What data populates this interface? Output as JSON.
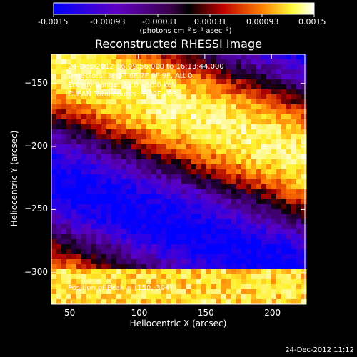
{
  "colorbar": {
    "ticks": [
      "-0.0015",
      "-0.00093",
      "-0.00031",
      "0.00031",
      "0.00093",
      "0.0015"
    ],
    "unit_text": "(photons cm⁻² s⁻¹ asec⁻²)"
  },
  "title": "Reconstructed RHESSI Image",
  "annotations": {
    "time": "24-Dec-2012 16:09:56.000 to 16:13:44.000",
    "detectors": "Detectors: 3F 5F 6F 7F 8F 9F, Att 0",
    "energy": "Energy Range: 25.0 - 50.0 keV",
    "counts": "CLEAN   Total counts: 1.09E+03",
    "peak": "Position of Peak = [150,-304]"
  },
  "stamp": "24-Dec-2012 11:12",
  "chart_data": {
    "type": "heatmap",
    "title": "Reconstructed RHESSI Image",
    "xlabel": "Heliocentric X (arcsec)",
    "ylabel": "Heliocentric Y (arcsec)",
    "xlim": [
      35,
      225
    ],
    "ylim": [
      -325,
      -127
    ],
    "xticks": [
      50,
      100,
      150,
      200
    ],
    "yticks": [
      -150,
      -200,
      -250,
      -300
    ],
    "colorbar_range": [
      -0.0015,
      0.0015
    ],
    "colormap": "red-temperature (blue → purple → red → yellow → white)",
    "peak_position": [
      150,
      -304
    ]
  }
}
